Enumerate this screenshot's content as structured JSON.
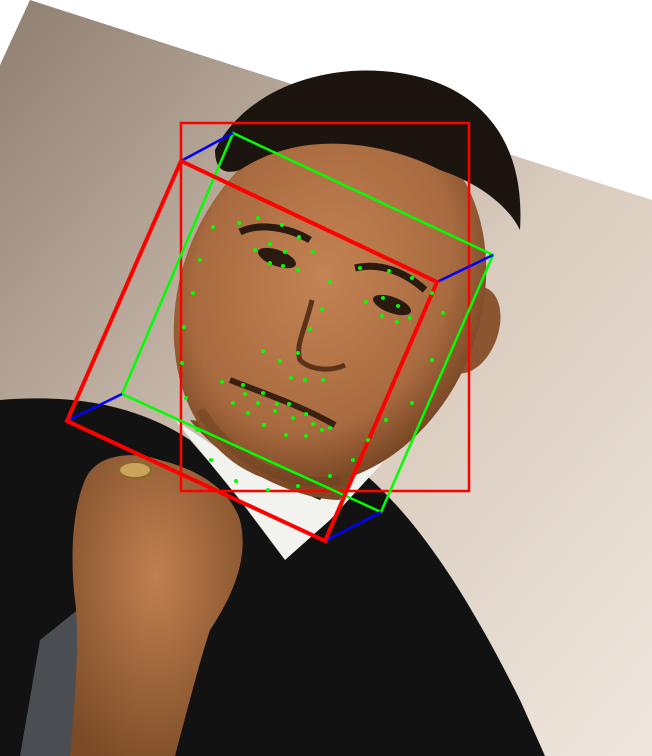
{
  "image": {
    "subject": "rotated-portrait-photo-with-face-detection-overlay",
    "background_color": "#ffffff"
  },
  "colors": {
    "photo_bg_light": "#d9cbbd",
    "photo_bg_dark": "#8f7f70",
    "skin": "#a86a3f",
    "skin_shadow": "#6e4020",
    "hair": "#1c140f",
    "suit": "#121212",
    "shirt": "#f2f2ee",
    "tie": "#4a4d52",
    "box_2d": "#ff0000",
    "box_front": "#ff0000",
    "box_back": "#00ff00",
    "box_edges": "#0000ff",
    "landmarks": "#00ff00"
  }
}
